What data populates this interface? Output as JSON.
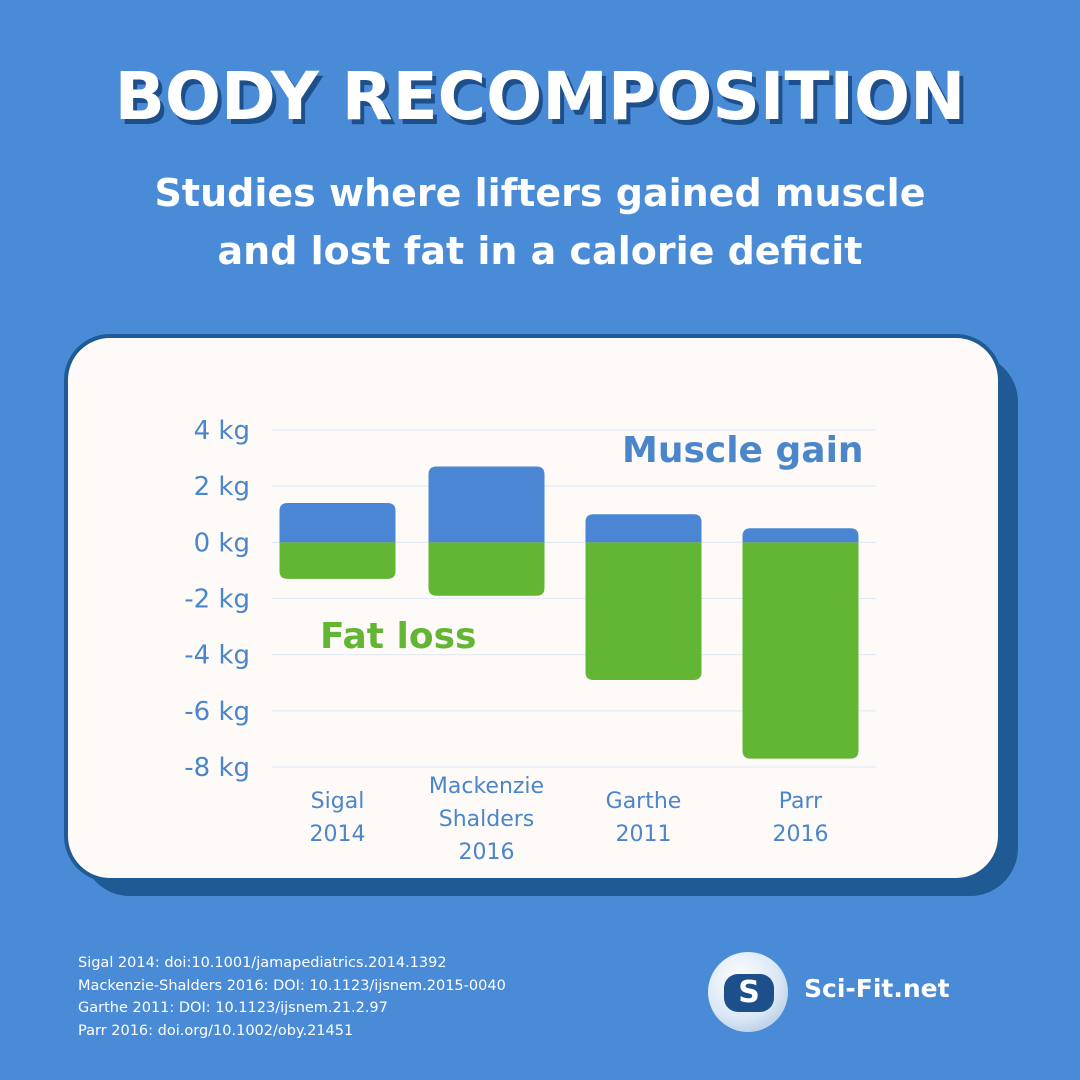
{
  "header": {
    "title": "BODY RECOMPOSITION",
    "subtitle_line1": "Studies where lifters gained muscle",
    "subtitle_line2": "and lost fat in a calorie deficit"
  },
  "chart_data": {
    "type": "bar",
    "stacked": "diverging",
    "categories": [
      [
        "Sigal",
        "2014"
      ],
      [
        "Mackenzie",
        "Shalders",
        "2016"
      ],
      [
        "Garthe",
        "2011"
      ],
      [
        "Parr",
        "2016"
      ]
    ],
    "series": [
      {
        "name": "Muscle gain",
        "color": "#4a86d4",
        "values": [
          1.4,
          2.7,
          1.0,
          0.5
        ]
      },
      {
        "name": "Fat loss",
        "color": "#63b534",
        "values": [
          -1.3,
          -1.9,
          -4.9,
          -7.7
        ]
      }
    ],
    "y_ticks": [
      {
        "value": 4,
        "label": "4 kg"
      },
      {
        "value": 2,
        "label": "2 kg"
      },
      {
        "value": 0,
        "label": "0 kg"
      },
      {
        "value": -2,
        "label": "-2 kg"
      },
      {
        "value": -4,
        "label": "-4 kg"
      },
      {
        "value": -6,
        "label": "-6 kg"
      },
      {
        "value": -8,
        "label": "-8 kg"
      }
    ],
    "ylim": [
      -8,
      4
    ],
    "unit": "kg",
    "grid": true,
    "annotations": {
      "muscle": "Muscle gain",
      "fat": "Fat loss"
    }
  },
  "references": [
    "Sigal 2014: doi:10.1001/jamapediatrics.2014.1392",
    "Mackenzie-Shalders 2016: DOI: 10.1123/ijsnem.2015-0040",
    "Garthe 2011: DOI: 10.1123/ijsnem.21.2.97",
    "Parr 2016: doi.org/10.1002/oby.21451"
  ],
  "brand": {
    "logo_letter": "S",
    "name": "Sci-Fit.net"
  }
}
